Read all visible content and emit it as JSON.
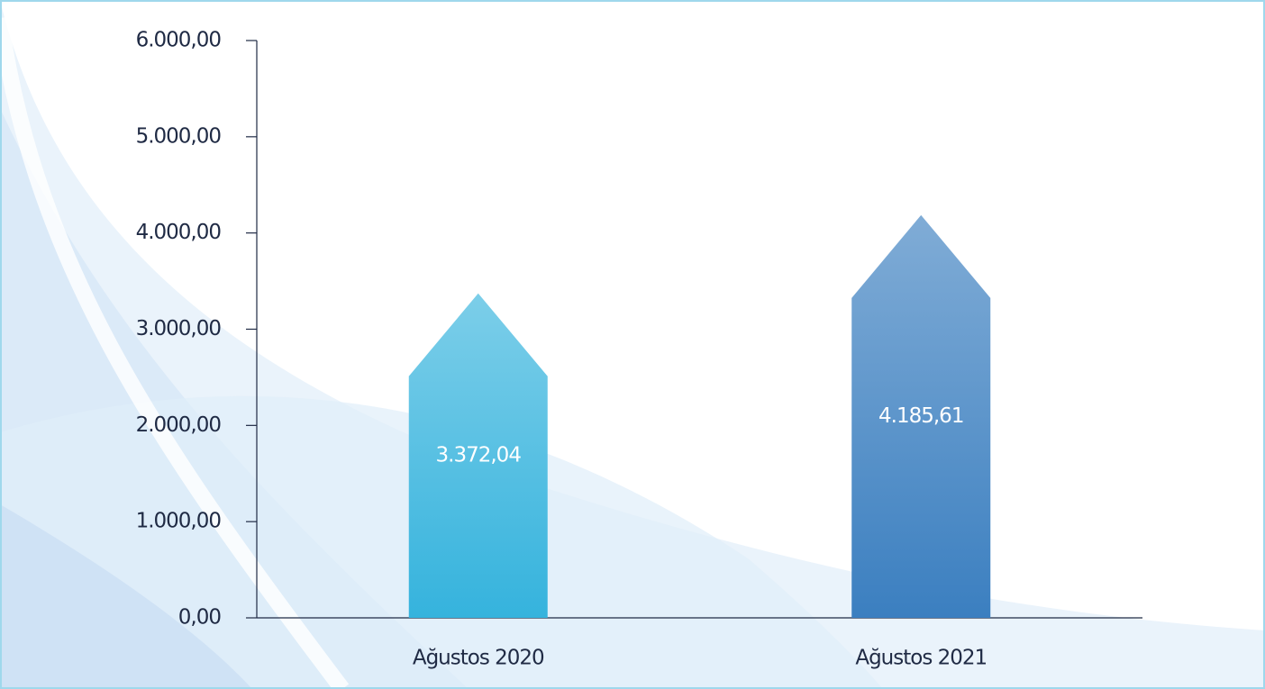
{
  "chart_data": {
    "type": "arrow-bar",
    "categories": [
      "Ağustos 2020",
      "Ağustos 2021"
    ],
    "values": [
      3372.04,
      4185.61
    ],
    "value_labels": [
      "3.372,04",
      "4.185,61"
    ],
    "colors": [
      "#35b3dd",
      "#3b7fc0"
    ],
    "ylim": [
      0,
      6000
    ],
    "yticks": [
      {
        "value": 0,
        "label": "0,00"
      },
      {
        "value": 1000,
        "label": "1.000,00"
      },
      {
        "value": 2000,
        "label": "2.000,00"
      },
      {
        "value": 3000,
        "label": "3.000,00"
      },
      {
        "value": 4000,
        "label": "4.000,00"
      },
      {
        "value": 5000,
        "label": "5.000,00"
      },
      {
        "value": 6000,
        "label": "6.000,00"
      }
    ]
  }
}
